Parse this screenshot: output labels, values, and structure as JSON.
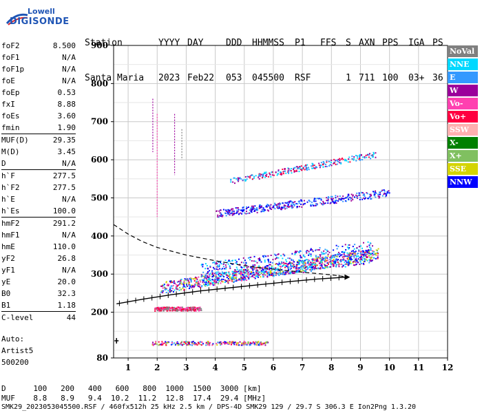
{
  "logo": {
    "line1": "Lowell",
    "line2": "DIGISONDE"
  },
  "header": {
    "labels": [
      "Station",
      "YYYY",
      "DAY",
      "DDD",
      "HHMMSS",
      "P1",
      "FFS",
      "S",
      "AXN",
      "PPS",
      "IGA",
      "PS"
    ],
    "values": [
      "Santa Maria",
      "2023",
      "Feb22",
      "053",
      "045500",
      "RSF",
      "1",
      "711",
      "100",
      "03+",
      "36"
    ]
  },
  "params": {
    "group1": [
      {
        "name": "foF2",
        "value": "8.500"
      },
      {
        "name": "foF1",
        "value": "N/A"
      },
      {
        "name": "foF1p",
        "value": "N/A"
      },
      {
        "name": "foE",
        "value": "N/A"
      },
      {
        "name": "foEp",
        "value": "0.53"
      },
      {
        "name": "fxI",
        "value": "8.88"
      },
      {
        "name": "foEs",
        "value": "3.60"
      },
      {
        "name": "fmin",
        "value": "1.90"
      }
    ],
    "group2": [
      {
        "name": "MUF(D)",
        "value": "29.35"
      },
      {
        "name": "M(D)",
        "value": "3.45"
      },
      {
        "name": "D",
        "value": "N/A"
      }
    ],
    "group3": [
      {
        "name": "h`F",
        "value": "277.5"
      },
      {
        "name": "h`F2",
        "value": "277.5"
      },
      {
        "name": "h`E",
        "value": "N/A"
      },
      {
        "name": "h`Es",
        "value": "100.0"
      }
    ],
    "group4": [
      {
        "name": "hmF2",
        "value": "291.2"
      },
      {
        "name": "hmF1",
        "value": "N/A"
      },
      {
        "name": "hmE",
        "value": "110.0"
      },
      {
        "name": "yF2",
        "value": "26.8"
      },
      {
        "name": "yF1",
        "value": "N/A"
      },
      {
        "name": "yE",
        "value": "20.0"
      },
      {
        "name": "B0",
        "value": "32.3"
      },
      {
        "name": "B1",
        "value": "1.18"
      }
    ],
    "group5": [
      {
        "name": "C-level",
        "value": "44"
      }
    ]
  },
  "auto": {
    "line1": "Auto:",
    "line2": "Artist5",
    "line3": "500200"
  },
  "legend": [
    {
      "label": "NoVal",
      "color": "#808080"
    },
    {
      "label": "NNE",
      "color": "#00d8ff"
    },
    {
      "label": "E",
      "color": "#3399ff"
    },
    {
      "label": "W",
      "color": "#9b009b"
    },
    {
      "label": "Vo-",
      "color": "#ff40b0"
    },
    {
      "label": "Vo+",
      "color": "#ff0040"
    },
    {
      "label": "SSW",
      "color": "#ffb0b0"
    },
    {
      "label": "X-",
      "color": "#008000"
    },
    {
      "label": "X+",
      "color": "#80c060"
    },
    {
      "label": "SSE",
      "color": "#d4d400"
    },
    {
      "label": "NNW",
      "color": "#0000ff"
    }
  ],
  "bottom_table": {
    "d_label": "D",
    "d_values": [
      "100",
      "200",
      "400",
      "600",
      "800",
      "1000",
      "1500",
      "3000"
    ],
    "d_unit": "[km]",
    "muf_label": "MUF",
    "muf_values": [
      "8.8",
      "8.9",
      "9.4",
      "10.2",
      "11.2",
      "12.8",
      "17.4",
      "29.4"
    ],
    "muf_unit": "[MHz]"
  },
  "footer": "SMK29_2023053045500.RSF / 460fx512h 25 kHz 2.5 km / DPS-4D SMK29 129 / 29.7 S 306.3 E Ion2Png 1.3.20",
  "chart_data": {
    "type": "scatter",
    "title": "",
    "xlabel": "",
    "ylabel": "",
    "xlim": [
      0.5,
      12
    ],
    "ylim": [
      80,
      900
    ],
    "x_ticks": [
      1,
      2,
      3,
      4,
      5,
      6,
      7,
      8,
      9,
      10,
      11,
      12
    ],
    "y_ticks": [
      80,
      200,
      300,
      400,
      500,
      600,
      700,
      800,
      900
    ],
    "grid": true,
    "legend_placement": "right",
    "trace_bands": [
      {
        "name": "Es",
        "x_range": [
          1.8,
          5.8
        ],
        "h_range": [
          115,
          125
        ],
        "colors": [
          "#ff0040",
          "#0000ff",
          "#9b009b",
          "#ff40b0",
          "#3399ff",
          "#80c060",
          "#d4d400"
        ]
      },
      {
        "name": "F lower",
        "x_range": [
          1.9,
          3.5
        ],
        "h_range": [
          205,
          215
        ],
        "colors": [
          "#ff0040",
          "#ff40b0",
          "#808080"
        ]
      },
      {
        "name": "F trace",
        "x_range": [
          2.1,
          9.6
        ],
        "h_range": [
          265,
          360
        ],
        "colors": [
          "#ff0040",
          "#0000ff",
          "#9b009b",
          "#3399ff",
          "#00d8ff",
          "#80c060",
          "#d4d400",
          "#ff40b0"
        ]
      },
      {
        "name": "F upper cloud",
        "x_range": [
          3.5,
          9.4
        ],
        "h_range": [
          300,
          440
        ],
        "colors": [
          "#0000ff",
          "#3399ff",
          "#00d8ff",
          "#9b009b"
        ]
      },
      {
        "name": "F2 second hop",
        "x_range": [
          4.0,
          10.0
        ],
        "h_range": [
          455,
          520
        ],
        "colors": [
          "#0000ff",
          "#9b009b",
          "#3399ff"
        ]
      },
      {
        "name": "multi hop",
        "x_range": [
          4.5,
          9.5
        ],
        "h_range": [
          545,
          620
        ],
        "colors": [
          "#ff0040",
          "#3399ff",
          "#00d8ff",
          "#9b009b"
        ]
      }
    ],
    "profile_curve": [
      [
        0.5,
        430
      ],
      [
        1.0,
        405
      ],
      [
        1.5,
        385
      ],
      [
        2.0,
        370
      ],
      [
        3.0,
        350
      ],
      [
        4.0,
        335
      ],
      [
        5.0,
        322
      ],
      [
        6.0,
        313
      ],
      [
        7.0,
        305
      ],
      [
        8.0,
        298
      ],
      [
        8.6,
        292
      ]
    ],
    "ordinary_trace": [
      [
        0.6,
        222
      ],
      [
        1.5,
        234
      ],
      [
        2.5,
        246
      ],
      [
        3.5,
        256
      ],
      [
        4.5,
        264
      ],
      [
        5.5,
        272
      ],
      [
        6.5,
        280
      ],
      [
        7.5,
        287
      ],
      [
        8.5,
        292
      ]
    ],
    "es_marker": [
      0.6,
      125
    ]
  }
}
